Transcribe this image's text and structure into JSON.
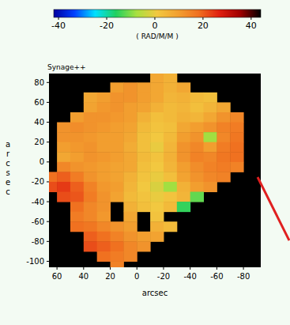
{
  "chart_data": {
    "type": "heatmap",
    "annotations": [
      "Synage++"
    ],
    "x_label": "arcsec",
    "y_label": "arcsec",
    "xlim": [
      66,
      -93
    ],
    "ylim": [
      -106,
      89
    ],
    "xticks": [
      60,
      40,
      20,
      0,
      -20,
      -40,
      -60,
      -80
    ],
    "yticks": [
      80,
      60,
      40,
      20,
      0,
      -20,
      -40,
      -60,
      -80,
      -100
    ],
    "x": [
      65,
      55,
      45,
      35,
      25,
      15,
      5,
      -5,
      -15,
      -25,
      -35,
      -45,
      -55,
      -65,
      -75,
      -85
    ],
    "y": [
      85,
      75,
      65,
      55,
      45,
      35,
      25,
      15,
      5,
      -5,
      -15,
      -25,
      -35,
      -45,
      -55,
      -65,
      -75,
      -85,
      -95,
      -105
    ],
    "cells": [
      [
        null,
        null,
        null,
        null,
        null,
        null,
        null,
        null,
        8,
        6,
        null,
        null,
        null,
        null,
        null,
        null
      ],
      [
        null,
        null,
        null,
        null,
        null,
        10,
        12,
        10,
        8,
        6,
        8,
        null,
        null,
        null,
        null,
        null
      ],
      [
        null,
        null,
        null,
        8,
        10,
        12,
        12,
        10,
        8,
        5,
        6,
        4,
        3,
        null,
        null,
        null
      ],
      [
        null,
        null,
        null,
        9,
        11,
        12,
        10,
        9,
        6,
        4,
        5,
        3,
        5,
        8,
        null,
        null
      ],
      [
        null,
        null,
        10,
        12,
        12,
        11,
        10,
        6,
        3,
        4,
        6,
        5,
        8,
        12,
        14,
        null
      ],
      [
        null,
        12,
        13,
        12,
        11,
        10,
        9,
        4,
        2,
        3,
        8,
        10,
        12,
        15,
        16,
        null
      ],
      [
        null,
        12,
        12,
        11,
        10,
        10,
        8,
        3,
        1,
        4,
        10,
        12,
        -8,
        14,
        17,
        null
      ],
      [
        null,
        10,
        11,
        12,
        10,
        10,
        7,
        3,
        0,
        5,
        12,
        14,
        10,
        16,
        18,
        null
      ],
      [
        null,
        8,
        10,
        12,
        11,
        10,
        8,
        4,
        2,
        6,
        12,
        15,
        14,
        17,
        18,
        null
      ],
      [
        null,
        14,
        12,
        11,
        10,
        9,
        8,
        3,
        1,
        5,
        10,
        13,
        15,
        16,
        15,
        null
      ],
      [
        18,
        20,
        16,
        12,
        10,
        9,
        6,
        2,
        0,
        3,
        9,
        12,
        14,
        15,
        null,
        null
      ],
      [
        22,
        24,
        20,
        15,
        11,
        10,
        5,
        1,
        -2,
        -8,
        6,
        10,
        12,
        null,
        null,
        null
      ],
      [
        null,
        22,
        21,
        16,
        12,
        9,
        4,
        2,
        0,
        2,
        5,
        -12,
        null,
        null,
        null,
        null
      ],
      [
        null,
        null,
        18,
        14,
        12,
        null,
        6,
        3,
        1,
        4,
        -15,
        null,
        null,
        null,
        null,
        null
      ],
      [
        null,
        null,
        16,
        14,
        11,
        null,
        8,
        null,
        2,
        null,
        null,
        null,
        null,
        null,
        null,
        null
      ],
      [
        null,
        null,
        18,
        17,
        14,
        12,
        10,
        null,
        6,
        4,
        null,
        null,
        null,
        null,
        null,
        null
      ],
      [
        null,
        null,
        null,
        20,
        18,
        15,
        12,
        10,
        9,
        null,
        null,
        null,
        null,
        null,
        null,
        null
      ],
      [
        null,
        null,
        null,
        22,
        20,
        18,
        14,
        12,
        null,
        null,
        null,
        null,
        null,
        null,
        null,
        null
      ],
      [
        null,
        null,
        null,
        null,
        18,
        16,
        14,
        null,
        null,
        null,
        null,
        null,
        null,
        null,
        null,
        null
      ],
      [
        null,
        null,
        null,
        null,
        null,
        15,
        null,
        null,
        null,
        null,
        null,
        null,
        null,
        null,
        null,
        null
      ]
    ],
    "color_range": [
      -42,
      44
    ],
    "color_ticks": [
      -40,
      -20,
      0,
      20,
      40
    ],
    "color_label": "( RAD/M/M )"
  }
}
